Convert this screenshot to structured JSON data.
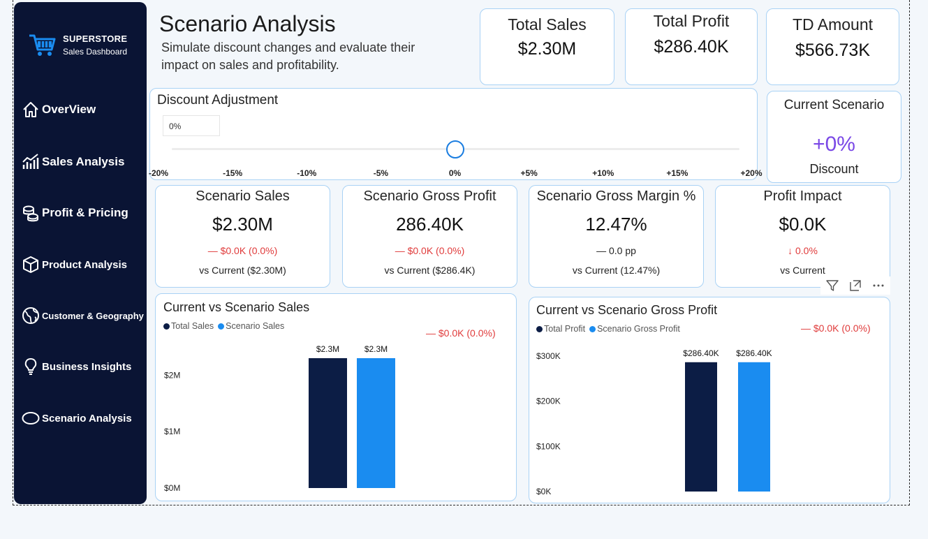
{
  "sidebar": {
    "brand_title": "SUPERSTORE",
    "brand_subtitle": "Sales Dashboard",
    "items": [
      {
        "label": "OverView",
        "icon": "home-icon"
      },
      {
        "label": "Sales Analysis",
        "icon": "bar-chart-icon"
      },
      {
        "label": "Profit & Pricing",
        "icon": "coins-icon"
      },
      {
        "label": "Product Analysis",
        "icon": "box-icon"
      },
      {
        "label": "Customer & Geography",
        "icon": "globe-icon"
      },
      {
        "label": "Business Insights",
        "icon": "lightbulb-icon"
      },
      {
        "label": "Scenario Analysis",
        "icon": "ellipse-icon"
      }
    ]
  },
  "header": {
    "title": "Scenario Analysis",
    "subtitle": "Simulate discount changes and evaluate their impact on sales and profitability."
  },
  "kpis": [
    {
      "title": "Total Sales",
      "value": "$2.30M"
    },
    {
      "title": "Total Profit",
      "value": "$286.40K"
    },
    {
      "title": "TD Amount",
      "value": "$566.73K"
    }
  ],
  "discount_adjustment": {
    "title": "Discount Adjustment",
    "input_value": "0%",
    "slider_value_percent": 0,
    "slider_min": -20,
    "slider_max": 20,
    "ticks": [
      "-20%",
      "-15%",
      "-10%",
      "-5%",
      "0%",
      "+5%",
      "+10%",
      "+15%",
      "+20%"
    ]
  },
  "current_scenario": {
    "title": "Current Scenario",
    "value": "+0%",
    "label": "Discount"
  },
  "scenario_cards": [
    {
      "title": "Scenario Sales",
      "value": "$2.30M",
      "delta": "— $0.0K (0.0%)",
      "delta_color": "red",
      "vs": "vs Current ($2.30M)"
    },
    {
      "title": "Scenario Gross Profit",
      "value": "286.40K",
      "delta": "— $0.0K (0.0%)",
      "delta_color": "red",
      "vs": "vs Current ($286.4K)"
    },
    {
      "title": "Scenario Gross Margin %",
      "value": "12.47%",
      "delta": "— 0.0 pp",
      "delta_color": "dark",
      "vs": "vs Current (12.47%)"
    },
    {
      "title": "Profit Impact",
      "value": "$0.0K",
      "delta": "↓ 0.0%",
      "delta_color": "red",
      "vs": "vs Current"
    }
  ],
  "visual_header_icons": [
    "filter-icon",
    "focus-mode-icon",
    "more-options-icon"
  ],
  "colors": {
    "sidebar_bg": "#0a1434",
    "navy_bar": "#0c1d45",
    "blue_bar": "#1a8cf0",
    "accent_purple": "#7a48e6",
    "negative_red": "#e03b3b",
    "card_border": "#a9d2f5"
  },
  "chart_data": [
    {
      "type": "bar",
      "title": "Current vs Scenario Sales",
      "delta_label": "— $0.0K (0.0%)",
      "series": [
        {
          "name": "Total Sales",
          "values": [
            2.3
          ],
          "label": "$2.3M"
        },
        {
          "name": "Scenario Sales",
          "values": [
            2.3
          ],
          "label": "$2.3M"
        }
      ],
      "yticks": [
        "$0M",
        "$1M",
        "$2M"
      ],
      "ytick_values": [
        0,
        1,
        2
      ],
      "ylim": [
        0,
        2.3
      ],
      "grid": false,
      "legend": "top-left"
    },
    {
      "type": "bar",
      "title": "Current vs Scenario Gross Profit",
      "delta_label": "— $0.0K (0.0%)",
      "series": [
        {
          "name": "Total Profit",
          "values": [
            286.4
          ],
          "label": "$286.40K"
        },
        {
          "name": "Scenario Gross Profit",
          "values": [
            286.4
          ],
          "label": "$286.40K"
        }
      ],
      "yticks": [
        "$0K",
        "$100K",
        "$200K",
        "$300K"
      ],
      "ytick_values": [
        0,
        100,
        200,
        300
      ],
      "ylim": [
        0,
        300
      ],
      "grid": false,
      "legend": "top-left"
    }
  ]
}
